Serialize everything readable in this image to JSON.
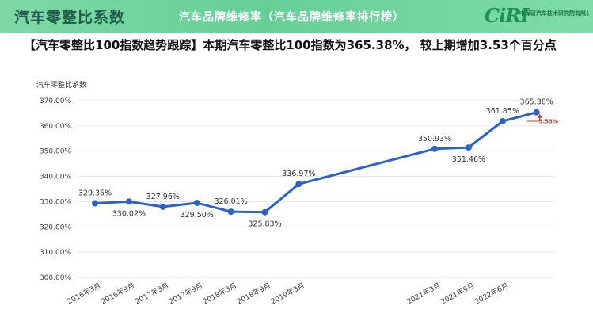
{
  "banner": {
    "title": "汽车零整比系数",
    "overlay_title": "汽车品牌维修率（汽车品牌维修率排行榜）"
  },
  "logo": {
    "mark": "CiRI",
    "text": "中保研汽车技术研究院有限公司"
  },
  "headline": "【汽车零整比100指数趋势跟踪】本期汽车零整比100指数为365.38%，  较上期增加3.53个百分点",
  "colors": {
    "banner": "#6fd39e",
    "line": "#2a62c9",
    "marker": "#2a62c9",
    "delta": "#c0392b",
    "grid": "#e6e6e6"
  },
  "chart_data": {
    "type": "line",
    "ylabel": "汽车零整比系数",
    "ylim": [
      300,
      370
    ],
    "yticks": [
      300,
      310,
      320,
      330,
      340,
      350,
      360,
      370
    ],
    "ytick_labels": [
      "300.00%",
      "310.00%",
      "320.00%",
      "330.00%",
      "340.00%",
      "350.00%",
      "360.00%",
      "370.00%"
    ],
    "categories": [
      "2016年3月",
      "2016年9月",
      "2017年3月",
      "2017年9月",
      "2018年3月",
      "2018年9月",
      "2019年3月",
      "",
      "",
      "",
      "2021年3月",
      "2021年9月",
      "2022年6月",
      ""
    ],
    "values": [
      329.35,
      330.02,
      327.96,
      329.5,
      326.01,
      325.83,
      336.97,
      null,
      null,
      null,
      350.93,
      351.46,
      361.85,
      365.38
    ],
    "data_labels": [
      "329.35%",
      "330.02%",
      "327.96%",
      "329.50%",
      "326.01%",
      "325.83%",
      "336.97%",
      "",
      "",
      "",
      "350.93%",
      "351.46%",
      "361.85%",
      "365.38%"
    ],
    "annotation": "3.53%",
    "grid": "horizontal"
  }
}
